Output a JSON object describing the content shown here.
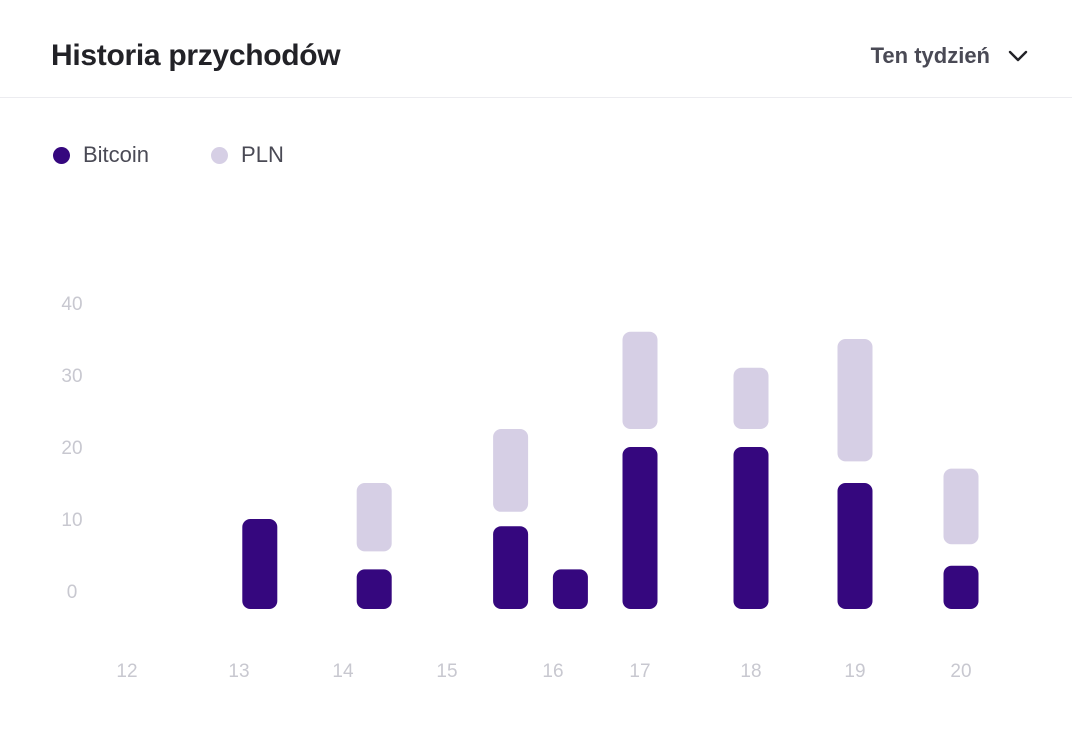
{
  "header": {
    "title": "Historia przychodów",
    "period_label": "Ten tydzień"
  },
  "legend": [
    {
      "label": "Bitcoin",
      "color": "#35077e"
    },
    {
      "label": "PLN",
      "color": "#d6cfe5"
    }
  ],
  "chart_data": {
    "type": "bar",
    "title": "Historia przychodów",
    "xlabel": "",
    "ylabel": "",
    "x_ticks": [
      "12",
      "13",
      "14",
      "15",
      "16",
      "17",
      "18",
      "19",
      "20"
    ],
    "y_ticks": [
      "0",
      "10",
      "20",
      "30",
      "40"
    ],
    "ylim": [
      0,
      40
    ],
    "grid": false,
    "legend_position": "top-left",
    "series": [
      {
        "name": "Bitcoin",
        "color": "#35077e",
        "points": [
          {
            "x": 13.2,
            "y0": 0,
            "y1": 10
          },
          {
            "x": 14.3,
            "y0": 0,
            "y1": 3
          },
          {
            "x": 15.6,
            "y0": 0,
            "y1": 9
          },
          {
            "x": 16.2,
            "y0": 0,
            "y1": 3
          },
          {
            "x": 17.0,
            "y0": 0,
            "y1": 20
          },
          {
            "x": 18.0,
            "y0": 0,
            "y1": 20
          },
          {
            "x": 19.0,
            "y0": 0,
            "y1": 15
          },
          {
            "x": 20.1,
            "y0": 0,
            "y1": 3.5
          }
        ]
      },
      {
        "name": "PLN",
        "color": "#d6cfe5",
        "points": [
          {
            "x": 14.3,
            "y0": 5.5,
            "y1": 15
          },
          {
            "x": 15.6,
            "y0": 11,
            "y1": 22.5
          },
          {
            "x": 17.0,
            "y0": 22.5,
            "y1": 36
          },
          {
            "x": 18.0,
            "y0": 22.5,
            "y1": 31
          },
          {
            "x": 19.0,
            "y0": 18,
            "y1": 35
          },
          {
            "x": 20.1,
            "y0": 6.5,
            "y1": 17
          }
        ]
      }
    ]
  }
}
